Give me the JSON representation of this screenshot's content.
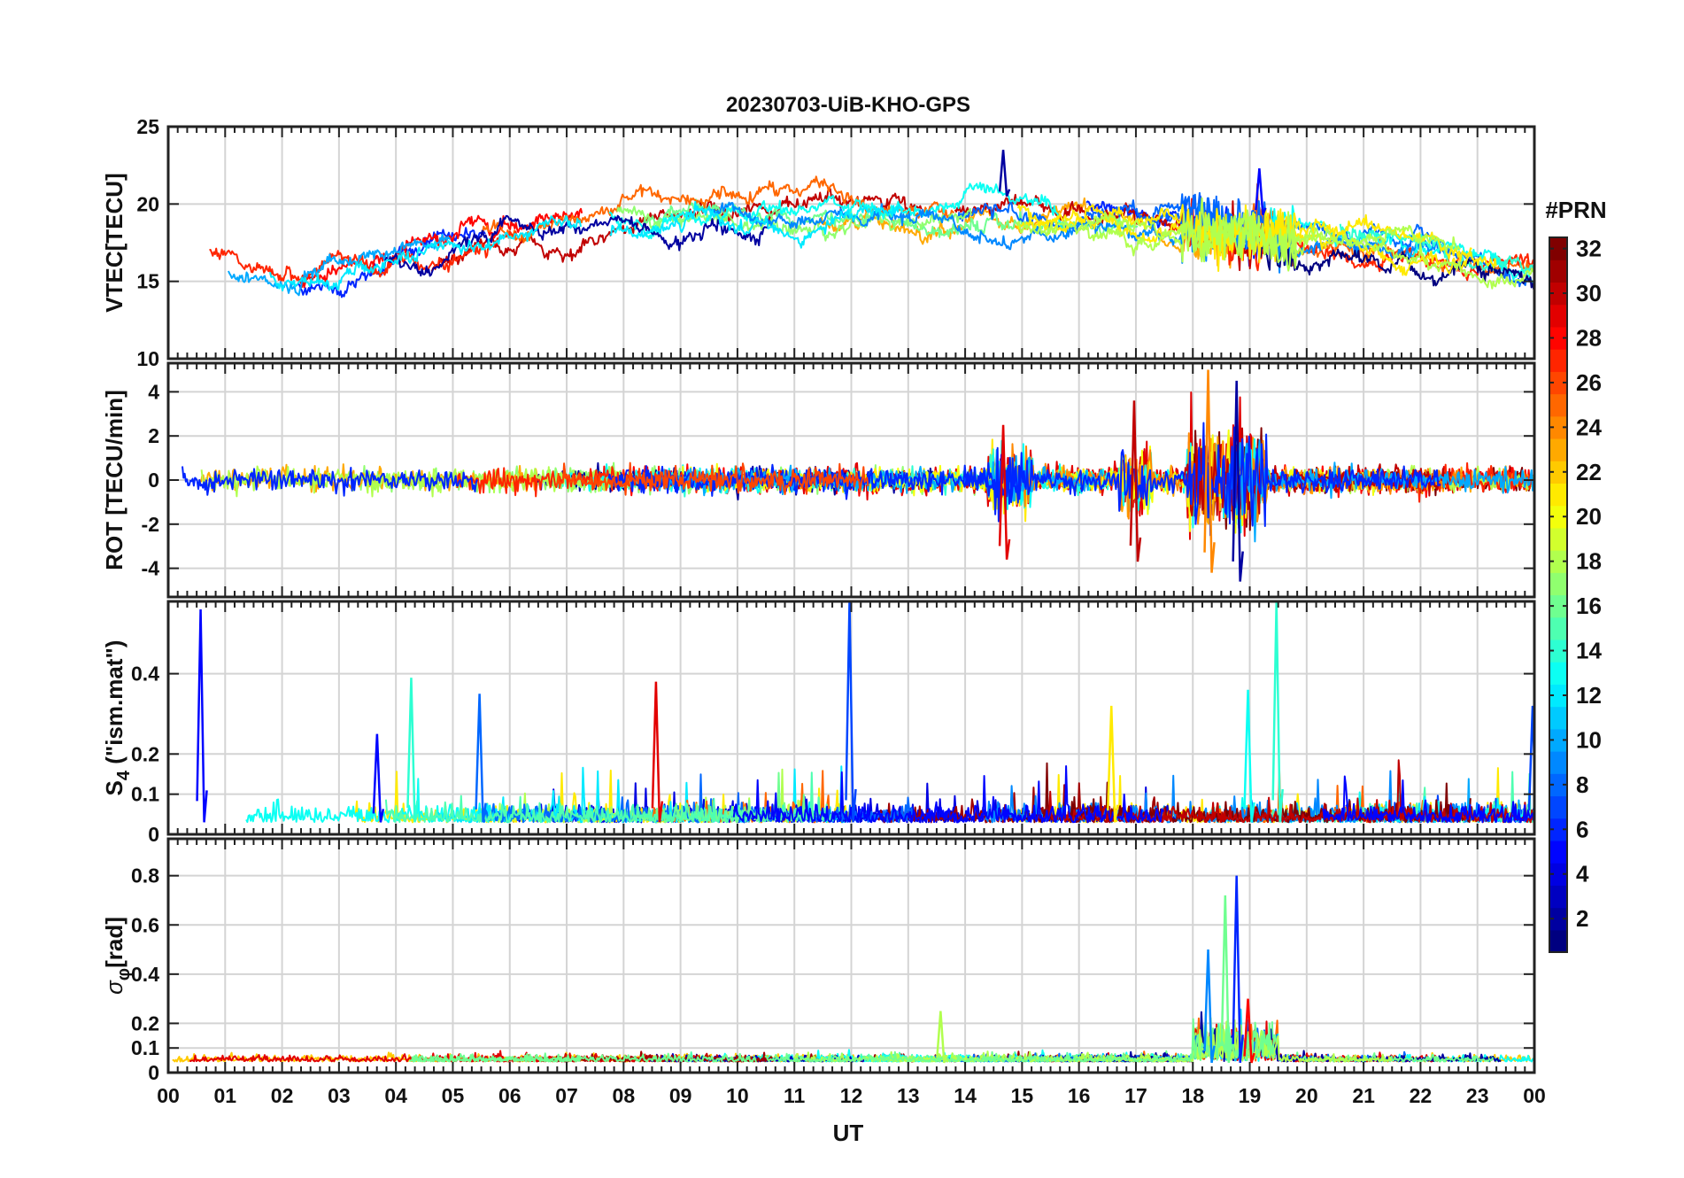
{
  "chart_data": {
    "type": "line",
    "title": "20230703-UiB-KHO-GPS",
    "xlabel": "UT",
    "x_ticks": [
      "00",
      "01",
      "02",
      "03",
      "04",
      "05",
      "06",
      "07",
      "08",
      "09",
      "10",
      "11",
      "12",
      "13",
      "14",
      "15",
      "16",
      "17",
      "18",
      "19",
      "20",
      "21",
      "22",
      "23",
      "00"
    ],
    "xlim_hours": [
      0,
      24
    ],
    "grid": true,
    "colorbar": {
      "label": "#PRN",
      "range": [
        1,
        32
      ],
      "ticks": [
        "2",
        "4",
        "6",
        "8",
        "10",
        "12",
        "14",
        "16",
        "18",
        "20",
        "22",
        "24",
        "26",
        "28",
        "30",
        "32"
      ],
      "colormap": "jet"
    },
    "panels": [
      {
        "name": "vtec",
        "ylabel": "VTEC[TECU]",
        "ylim": [
          10,
          25
        ],
        "yticks": [
          "10",
          "15",
          "20",
          "25"
        ],
        "baseline_profile": {
          "x_hours": [
            0,
            2,
            4,
            6,
            8,
            10,
            12,
            14,
            16,
            18,
            20,
            22,
            24
          ],
          "y": [
            16,
            15.5,
            16,
            18,
            19.5,
            19.5,
            19.5,
            19.5,
            19,
            18.5,
            17.5,
            17,
            15.5
          ]
        },
        "peaks": [
          {
            "hour": 14.7,
            "value": 23.5
          },
          {
            "hour": 19.2,
            "value": 22.3
          }
        ]
      },
      {
        "name": "rot",
        "ylabel": "ROT [TECU/min]",
        "ylim": [
          -5.3,
          5.3
        ],
        "yticks": [
          "-4",
          "-2",
          "0",
          "2",
          "4"
        ],
        "bursts": [
          {
            "hour": 14.7,
            "min": -3.6,
            "max": 2.5
          },
          {
            "hour": 17.0,
            "min": -3.7,
            "max": 3.6
          },
          {
            "hour": 18.3,
            "min": -4.2,
            "max": 5.0
          },
          {
            "hour": 18.8,
            "min": -4.6,
            "max": 4.5
          }
        ]
      },
      {
        "name": "s4",
        "ylabel_main": "S",
        "ylabel_sub": "4",
        "ylabel_rest": " (\"ism.mat\")",
        "ylim": [
          0,
          0.58
        ],
        "yticks": [
          "0",
          "0.1",
          "0.2",
          "0.4"
        ],
        "peaks": [
          {
            "hour": 0.6,
            "value": 0.56
          },
          {
            "hour": 3.7,
            "value": 0.25
          },
          {
            "hour": 4.3,
            "value": 0.39
          },
          {
            "hour": 5.5,
            "value": 0.35
          },
          {
            "hour": 8.6,
            "value": 0.38
          },
          {
            "hour": 12.0,
            "value": 0.58
          },
          {
            "hour": 16.6,
            "value": 0.32
          },
          {
            "hour": 19.0,
            "value": 0.36
          },
          {
            "hour": 19.5,
            "value": 0.58
          },
          {
            "hour": 24.0,
            "value": 0.32
          }
        ]
      },
      {
        "name": "sigma_phi",
        "ylabel_main": "σ",
        "ylabel_sub": "φ",
        "ylabel_rest": "[rad]",
        "ylim": [
          0,
          0.95
        ],
        "yticks": [
          "0",
          "0.1",
          "0.2",
          "0.4",
          "0.6",
          "0.8"
        ],
        "peaks": [
          {
            "hour": 13.6,
            "value": 0.25
          },
          {
            "hour": 18.3,
            "value": 0.5
          },
          {
            "hour": 18.6,
            "value": 0.72
          },
          {
            "hour": 18.8,
            "value": 0.8
          },
          {
            "hour": 19.0,
            "value": 0.3
          }
        ]
      }
    ]
  }
}
